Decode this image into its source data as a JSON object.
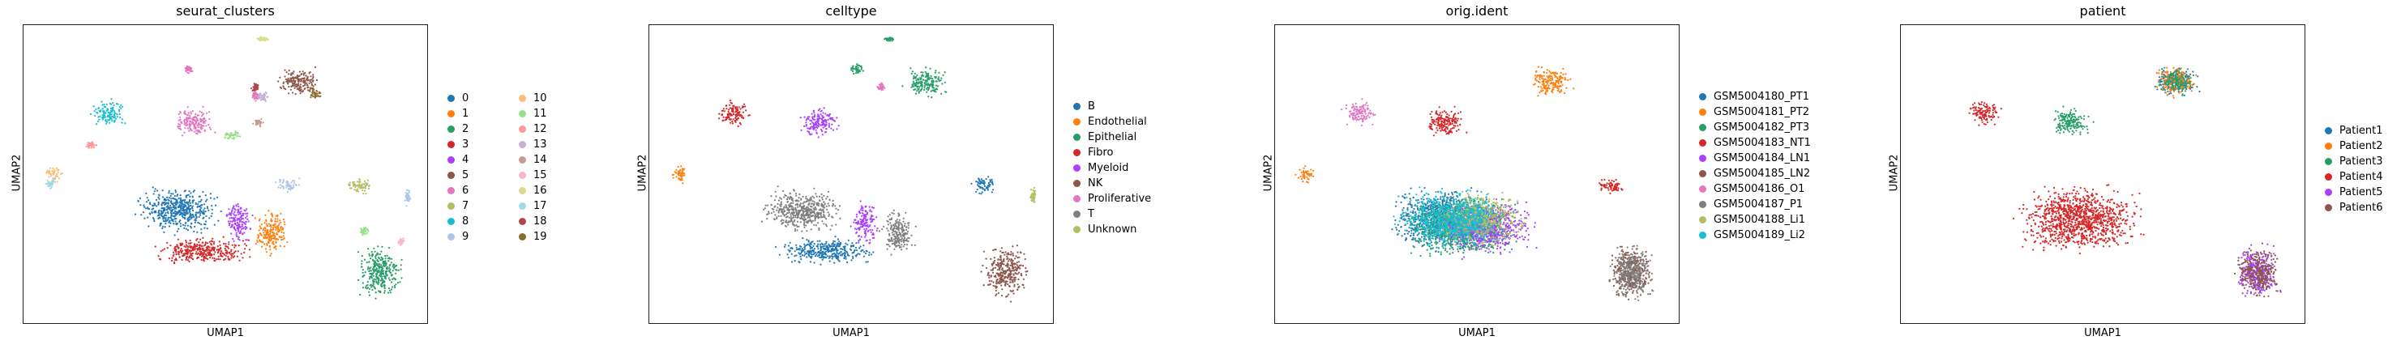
{
  "panels": [
    {
      "title": "seurat_clusters",
      "xlabel": "UMAP1",
      "ylabel": "UMAP2",
      "legend_columns": 2,
      "legend": [
        "0",
        "1",
        "2",
        "3",
        "4",
        "5",
        "6",
        "7",
        "8",
        "9",
        "10",
        "11",
        "12",
        "13",
        "14",
        "15",
        "16",
        "17",
        "18",
        "19"
      ],
      "colors": [
        "#1f77b4",
        "#ff7f0e",
        "#279e68",
        "#d62728",
        "#aa40fc",
        "#8c564b",
        "#e377c2",
        "#b5bd61",
        "#17becf",
        "#aec7e8",
        "#ffbb78",
        "#98df8a",
        "#ff9896",
        "#c5b0d5",
        "#c49c94",
        "#f7b6d2",
        "#dbdb8d",
        "#9edae5",
        "#ad494a",
        "#8c6d31"
      ]
    },
    {
      "title": "celltype",
      "xlabel": "UMAP1",
      "ylabel": "UMAP2",
      "legend_columns": 1,
      "legend": [
        "B",
        "Endothelial",
        "Epithelial",
        "Fibro",
        "Myeloid",
        "NK",
        "Proliferative",
        "T",
        "Unknown"
      ],
      "colors": [
        "#1f77b4",
        "#ff7f0e",
        "#279e68",
        "#d62728",
        "#aa40fc",
        "#8c564b",
        "#e377c2",
        "#7f7f7f",
        "#b5bd61"
      ]
    },
    {
      "title": "orig.ident",
      "xlabel": "UMAP1",
      "ylabel": "UMAP2",
      "legend_columns": 1,
      "legend": [
        "GSM5004180_PT1",
        "GSM5004181_PT2",
        "GSM5004182_PT3",
        "GSM5004183_NT1",
        "GSM5004184_LN1",
        "GSM5004185_LN2",
        "GSM5004186_O1",
        "GSM5004187_P1",
        "GSM5004188_Li1",
        "GSM5004189_Li2"
      ],
      "colors": [
        "#1f77b4",
        "#ff7f0e",
        "#279e68",
        "#d62728",
        "#aa40fc",
        "#8c564b",
        "#e377c2",
        "#7f7f7f",
        "#b5bd61",
        "#17becf"
      ]
    },
    {
      "title": "patient",
      "xlabel": "UMAP1",
      "ylabel": "UMAP2",
      "legend_columns": 1,
      "legend": [
        "Patient1",
        "Patient2",
        "Patient3",
        "Patient4",
        "Patient5",
        "Patient6"
      ],
      "colors": [
        "#1f77b4",
        "#ff7f0e",
        "#279e68",
        "#d62728",
        "#aa40fc",
        "#8c564b"
      ]
    }
  ],
  "chart_data": [
    {
      "type": "scatter",
      "title": "seurat_clusters",
      "xlabel": "UMAP1",
      "ylabel": "UMAP2",
      "series": [
        {
          "name": "0",
          "color": "#1f77b4",
          "clusters": [
            {
              "cx": -3.0,
              "cy": 1.0,
              "rx": 3.0,
              "ry": 1.5
            }
          ]
        },
        {
          "name": "1",
          "color": "#ff7f0e",
          "clusters": [
            {
              "cx": 2.8,
              "cy": -0.3,
              "rx": 1.2,
              "ry": 1.5
            }
          ]
        },
        {
          "name": "2",
          "color": "#279e68",
          "clusters": [
            {
              "cx": 9.5,
              "cy": -2.5,
              "rx": 1.6,
              "ry": 1.8
            }
          ]
        },
        {
          "name": "3",
          "color": "#d62728",
          "clusters": [
            {
              "cx": -1.5,
              "cy": -1.3,
              "rx": 3.5,
              "ry": 0.9
            }
          ]
        },
        {
          "name": "4",
          "color": "#aa40fc",
          "clusters": [
            {
              "cx": 0.8,
              "cy": 0.3,
              "rx": 1.0,
              "ry": 1.4
            }
          ]
        },
        {
          "name": "5",
          "color": "#8c564b",
          "clusters": [
            {
              "cx": 4.5,
              "cy": 8.3,
              "rx": 1.6,
              "ry": 1.0
            }
          ]
        },
        {
          "name": "6",
          "color": "#e377c2",
          "clusters": [
            {
              "cx": -2.0,
              "cy": 6.0,
              "rx": 1.5,
              "ry": 1.0
            },
            {
              "cx": -2.3,
              "cy": 9.0,
              "rx": 0.3,
              "ry": 0.3
            },
            {
              "cx": 1.8,
              "cy": 7.5,
              "rx": 0.3,
              "ry": 0.4
            }
          ]
        },
        {
          "name": "7",
          "color": "#b5bd61",
          "clusters": [
            {
              "cx": 8.2,
              "cy": 2.4,
              "rx": 1.0,
              "ry": 0.6
            }
          ]
        },
        {
          "name": "8",
          "color": "#17becf",
          "clusters": [
            {
              "cx": -7.3,
              "cy": 6.5,
              "rx": 1.2,
              "ry": 0.9
            }
          ]
        },
        {
          "name": "9",
          "color": "#aec7e8",
          "clusters": [
            {
              "cx": 3.8,
              "cy": 2.4,
              "rx": 1.0,
              "ry": 0.5
            },
            {
              "cx": 11.2,
              "cy": 1.8,
              "rx": 0.2,
              "ry": 0.6
            }
          ]
        },
        {
          "name": "10",
          "color": "#ffbb78",
          "clusters": [
            {
              "cx": -10.6,
              "cy": 3.0,
              "rx": 0.7,
              "ry": 0.6
            }
          ]
        },
        {
          "name": "11",
          "color": "#98df8a",
          "clusters": [
            {
              "cx": 0.3,
              "cy": 5.3,
              "rx": 0.8,
              "ry": 0.4
            },
            {
              "cx": 8.5,
              "cy": -0.2,
              "rx": 0.3,
              "ry": 0.3
            }
          ]
        },
        {
          "name": "12",
          "color": "#ff9896",
          "clusters": [
            {
              "cx": -8.3,
              "cy": 4.7,
              "rx": 0.4,
              "ry": 0.3
            }
          ]
        },
        {
          "name": "13",
          "color": "#c5b0d5",
          "clusters": [
            {
              "cx": 2.3,
              "cy": 7.4,
              "rx": 0.4,
              "ry": 0.4
            }
          ]
        },
        {
          "name": "14",
          "color": "#c49c94",
          "clusters": [
            {
              "cx": 2.0,
              "cy": 6.0,
              "rx": 0.4,
              "ry": 0.3
            }
          ]
        },
        {
          "name": "15",
          "color": "#f7b6d2",
          "clusters": [
            {
              "cx": 10.8,
              "cy": -0.8,
              "rx": 0.3,
              "ry": 0.3
            }
          ]
        },
        {
          "name": "16",
          "color": "#dbdb8d",
          "clusters": [
            {
              "cx": 2.3,
              "cy": 10.7,
              "rx": 0.5,
              "ry": 0.15
            }
          ]
        },
        {
          "name": "17",
          "color": "#9edae5",
          "clusters": [
            {
              "cx": -10.8,
              "cy": 2.5,
              "rx": 0.4,
              "ry": 0.4
            }
          ]
        },
        {
          "name": "18",
          "color": "#ad494a",
          "clusters": [
            {
              "cx": 1.8,
              "cy": 8.0,
              "rx": 0.3,
              "ry": 0.3
            }
          ]
        },
        {
          "name": "19",
          "color": "#8c6d31",
          "clusters": [
            {
              "cx": 5.5,
              "cy": 7.6,
              "rx": 0.6,
              "ry": 0.4
            }
          ]
        }
      ]
    },
    {
      "type": "scatter",
      "title": "celltype",
      "xlabel": "UMAP1",
      "ylabel": "UMAP2",
      "series": [
        {
          "name": "B",
          "color": "#1f77b4",
          "clusters": [
            {
              "cx": -1.5,
              "cy": -1.3,
              "rx": 3.5,
              "ry": 0.9
            },
            {
              "cx": 8.2,
              "cy": 2.4,
              "rx": 1.0,
              "ry": 0.6
            }
          ]
        },
        {
          "name": "Endothelial",
          "color": "#ff7f0e",
          "clusters": [
            {
              "cx": -10.6,
              "cy": 3.0,
              "rx": 0.7,
              "ry": 0.6
            }
          ]
        },
        {
          "name": "Epithelial",
          "color": "#279e68",
          "clusters": [
            {
              "cx": 4.5,
              "cy": 8.3,
              "rx": 1.6,
              "ry": 1.0
            },
            {
              "cx": 0.3,
              "cy": 9.0,
              "rx": 0.5,
              "ry": 0.4
            },
            {
              "cx": 2.3,
              "cy": 10.7,
              "rx": 0.5,
              "ry": 0.15
            }
          ]
        },
        {
          "name": "Fibro",
          "color": "#d62728",
          "clusters": [
            {
              "cx": -7.3,
              "cy": 6.5,
              "rx": 1.2,
              "ry": 0.9
            }
          ]
        },
        {
          "name": "Myeloid",
          "color": "#aa40fc",
          "clusters": [
            {
              "cx": -2.0,
              "cy": 6.0,
              "rx": 1.5,
              "ry": 1.0
            },
            {
              "cx": 0.8,
              "cy": 0.3,
              "rx": 1.0,
              "ry": 1.4
            }
          ]
        },
        {
          "name": "NK",
          "color": "#8c564b",
          "clusters": [
            {
              "cx": 9.5,
              "cy": -2.5,
              "rx": 1.6,
              "ry": 1.8
            }
          ]
        },
        {
          "name": "Proliferative",
          "color": "#e377c2",
          "clusters": [
            {
              "cx": 1.8,
              "cy": 8.0,
              "rx": 0.3,
              "ry": 0.3
            }
          ]
        },
        {
          "name": "T",
          "color": "#7f7f7f",
          "clusters": [
            {
              "cx": -3.0,
              "cy": 1.0,
              "rx": 3.0,
              "ry": 1.5
            },
            {
              "cx": 2.8,
              "cy": -0.3,
              "rx": 1.2,
              "ry": 1.5
            }
          ]
        },
        {
          "name": "Unknown",
          "color": "#b5bd61",
          "clusters": [
            {
              "cx": 11.2,
              "cy": 1.8,
              "rx": 0.2,
              "ry": 0.6
            }
          ]
        }
      ]
    },
    {
      "type": "scatter",
      "title": "orig.ident",
      "xlabel": "UMAP1",
      "ylabel": "UMAP2",
      "series": [
        {
          "name": "GSM5004180_PT1",
          "color": "#1f77b4",
          "clusters": [
            {
              "cx": -2.0,
              "cy": 0.5,
              "rx": 4.0,
              "ry": 2.0
            }
          ]
        },
        {
          "name": "GSM5004181_PT2",
          "color": "#ff7f0e",
          "clusters": [
            {
              "cx": 4.5,
              "cy": 8.3,
              "rx": 1.6,
              "ry": 1.0
            },
            {
              "cx": -10.6,
              "cy": 3.0,
              "rx": 0.7,
              "ry": 0.6
            }
          ]
        },
        {
          "name": "GSM5004182_PT3",
          "color": "#279e68",
          "clusters": [
            {
              "cx": -1.0,
              "cy": 0.0,
              "rx": 4.0,
              "ry": 2.0
            }
          ]
        },
        {
          "name": "GSM5004183_NT1",
          "color": "#d62728",
          "clusters": [
            {
              "cx": -2.0,
              "cy": 6.0,
              "rx": 1.5,
              "ry": 1.0
            },
            {
              "cx": 8.2,
              "cy": 2.4,
              "rx": 1.0,
              "ry": 0.6
            }
          ]
        },
        {
          "name": "GSM5004184_LN1",
          "color": "#aa40fc",
          "clusters": [
            {
              "cx": 0.5,
              "cy": 0.0,
              "rx": 3.5,
              "ry": 1.8
            }
          ]
        },
        {
          "name": "GSM5004185_LN2",
          "color": "#8c564b",
          "clusters": [
            {
              "cx": 9.5,
              "cy": -2.5,
              "rx": 1.6,
              "ry": 1.8
            }
          ]
        },
        {
          "name": "GSM5004186_O1",
          "color": "#e377c2",
          "clusters": [
            {
              "cx": -7.3,
              "cy": 6.5,
              "rx": 1.2,
              "ry": 0.9
            }
          ]
        },
        {
          "name": "GSM5004187_P1",
          "color": "#7f7f7f",
          "clusters": [
            {
              "cx": 9.5,
              "cy": -2.5,
              "rx": 1.6,
              "ry": 1.8
            }
          ]
        },
        {
          "name": "GSM5004188_Li1",
          "color": "#b5bd61",
          "clusters": [
            {
              "cx": 0.0,
              "cy": 0.5,
              "rx": 3.5,
              "ry": 1.8
            }
          ]
        },
        {
          "name": "GSM5004189_Li2",
          "color": "#17becf",
          "clusters": [
            {
              "cx": -1.5,
              "cy": 0.5,
              "rx": 4.0,
              "ry": 2.0
            }
          ]
        }
      ]
    },
    {
      "type": "scatter",
      "title": "patient",
      "xlabel": "UMAP1",
      "ylabel": "UMAP2",
      "series": [
        {
          "name": "Patient1",
          "color": "#1f77b4",
          "clusters": [
            {
              "cx": 4.5,
              "cy": 8.3,
              "rx": 1.6,
              "ry": 1.0
            }
          ]
        },
        {
          "name": "Patient2",
          "color": "#ff7f0e",
          "clusters": [
            {
              "cx": 4.5,
              "cy": 8.3,
              "rx": 1.6,
              "ry": 1.0
            }
          ]
        },
        {
          "name": "Patient3",
          "color": "#279e68",
          "clusters": [
            {
              "cx": -2.0,
              "cy": 6.0,
              "rx": 1.5,
              "ry": 1.0
            },
            {
              "cx": 4.5,
              "cy": 8.3,
              "rx": 1.4,
              "ry": 0.9
            }
          ]
        },
        {
          "name": "Patient4",
          "color": "#d62728",
          "clusters": [
            {
              "cx": -1.5,
              "cy": 0.5,
              "rx": 4.5,
              "ry": 2.2
            },
            {
              "cx": -7.3,
              "cy": 6.5,
              "rx": 1.2,
              "ry": 0.9
            }
          ]
        },
        {
          "name": "Patient5",
          "color": "#aa40fc",
          "clusters": [
            {
              "cx": 9.5,
              "cy": -2.5,
              "rx": 1.6,
              "ry": 1.8
            }
          ]
        },
        {
          "name": "Patient6",
          "color": "#8c564b",
          "clusters": [
            {
              "cx": 9.5,
              "cy": -2.5,
              "rx": 1.6,
              "ry": 1.8
            }
          ]
        }
      ]
    }
  ]
}
